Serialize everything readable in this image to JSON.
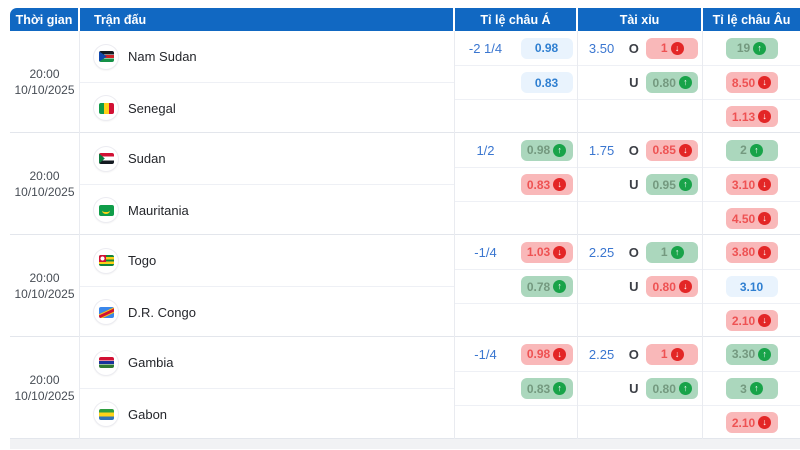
{
  "header": {
    "time": "Thời gian",
    "match": "Trận đấu",
    "asian": "Tỉ lệ châu Á",
    "ou": "Tài xỉu",
    "euro": "Tỉ lệ châu Âu"
  },
  "icons": {
    "up": "↑",
    "down": "↓"
  },
  "colors": {
    "header_bg": "#1168c2",
    "value_blue": "#3a76d0",
    "pill_flat_bg": "#e9f3fd",
    "pill_up_bg": "#abd7bd",
    "pill_up_circle": "#18a349",
    "pill_down_bg": "#f9b8b9",
    "pill_down_circle": "#e32626"
  },
  "matches": [
    {
      "time": "20:00",
      "date": "10/10/2025",
      "home": "Nam Sudan",
      "home_flag": "south-sudan",
      "away": "Senegal",
      "away_flag": "senegal",
      "asian_handicap": "-2 1/4",
      "asian_home": {
        "value": "0.98",
        "trend": "flat"
      },
      "asian_away": {
        "value": "0.83",
        "trend": "flat"
      },
      "ou_total": "3.50",
      "ou_over_label": "O",
      "ou_under_label": "U",
      "ou_over": {
        "value": "1",
        "trend": "down"
      },
      "ou_under": {
        "value": "0.80",
        "trend": "up"
      },
      "euro_home": {
        "value": "19",
        "trend": "up"
      },
      "euro_draw": {
        "value": "8.50",
        "trend": "down"
      },
      "euro_away": {
        "value": "1.13",
        "trend": "down"
      }
    },
    {
      "time": "20:00",
      "date": "10/10/2025",
      "home": "Sudan",
      "home_flag": "sudan",
      "away": "Mauritania",
      "away_flag": "mauritania",
      "asian_handicap": "1/2",
      "asian_home": {
        "value": "0.98",
        "trend": "up"
      },
      "asian_away": {
        "value": "0.83",
        "trend": "down"
      },
      "ou_total": "1.75",
      "ou_over_label": "O",
      "ou_under_label": "U",
      "ou_over": {
        "value": "0.85",
        "trend": "down"
      },
      "ou_under": {
        "value": "0.95",
        "trend": "up"
      },
      "euro_home": {
        "value": "2",
        "trend": "up"
      },
      "euro_draw": {
        "value": "3.10",
        "trend": "down"
      },
      "euro_away": {
        "value": "4.50",
        "trend": "down"
      }
    },
    {
      "time": "20:00",
      "date": "10/10/2025",
      "home": "Togo",
      "home_flag": "togo",
      "away": "D.R. Congo",
      "away_flag": "dr-congo",
      "asian_handicap": "-1/4",
      "asian_home": {
        "value": "1.03",
        "trend": "down"
      },
      "asian_away": {
        "value": "0.78",
        "trend": "up"
      },
      "ou_total": "2.25",
      "ou_over_label": "O",
      "ou_under_label": "U",
      "ou_over": {
        "value": "1",
        "trend": "up"
      },
      "ou_under": {
        "value": "0.80",
        "trend": "down"
      },
      "euro_home": {
        "value": "3.80",
        "trend": "down"
      },
      "euro_draw": {
        "value": "3.10",
        "trend": "flat"
      },
      "euro_away": {
        "value": "2.10",
        "trend": "down"
      }
    },
    {
      "time": "20:00",
      "date": "10/10/2025",
      "home": "Gambia",
      "home_flag": "gambia",
      "away": "Gabon",
      "away_flag": "gabon",
      "asian_handicap": "-1/4",
      "asian_home": {
        "value": "0.98",
        "trend": "down"
      },
      "asian_away": {
        "value": "0.83",
        "trend": "up"
      },
      "ou_total": "2.25",
      "ou_over_label": "O",
      "ou_under_label": "U",
      "ou_over": {
        "value": "1",
        "trend": "down"
      },
      "ou_under": {
        "value": "0.80",
        "trend": "up"
      },
      "euro_home": {
        "value": "3.30",
        "trend": "up"
      },
      "euro_draw": {
        "value": "3",
        "trend": "up"
      },
      "euro_away": {
        "value": "2.10",
        "trend": "down"
      }
    }
  ]
}
